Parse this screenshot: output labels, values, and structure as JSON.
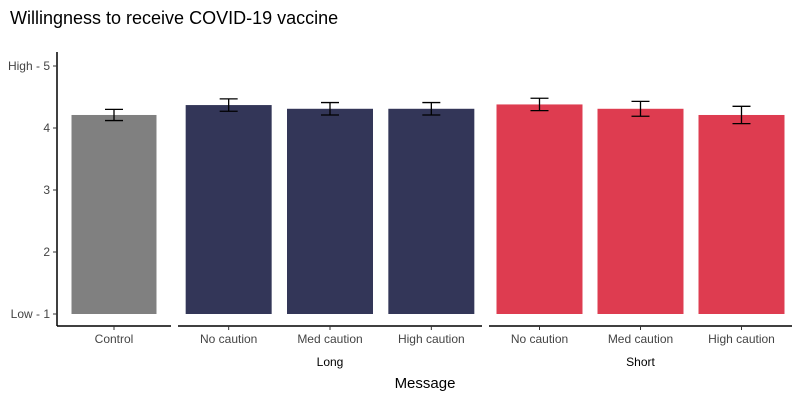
{
  "chart_data": {
    "type": "bar",
    "title": "Willingness to receive COVID-19 vaccine",
    "xlabel": "Message",
    "ylabel": "",
    "ylim": [
      1,
      5
    ],
    "yticks": [
      {
        "value": 5,
        "label": "High - 5"
      },
      {
        "value": 4,
        "label": "4"
      },
      {
        "value": 3,
        "label": "3"
      },
      {
        "value": 2,
        "label": "2"
      },
      {
        "value": 1,
        "label": "Low - 1"
      }
    ],
    "grid": false,
    "groups": [
      {
        "label": "",
        "bars": [
          {
            "category": "Control",
            "value": 4.21,
            "err_low": 4.12,
            "err_high": 4.3,
            "color": "#808080"
          }
        ]
      },
      {
        "label": "Long",
        "bars": [
          {
            "category": "No caution",
            "value": 4.37,
            "err_low": 4.27,
            "err_high": 4.47,
            "color": "#333658"
          },
          {
            "category": "Med caution",
            "value": 4.31,
            "err_low": 4.21,
            "err_high": 4.41,
            "color": "#333658"
          },
          {
            "category": "High caution",
            "value": 4.31,
            "err_low": 4.21,
            "err_high": 4.41,
            "color": "#333658"
          }
        ]
      },
      {
        "label": "Short",
        "bars": [
          {
            "category": "No caution",
            "value": 4.38,
            "err_low": 4.28,
            "err_high": 4.48,
            "color": "#de3c50"
          },
          {
            "category": "Med caution",
            "value": 4.31,
            "err_low": 4.19,
            "err_high": 4.43,
            "color": "#de3c50"
          },
          {
            "category": "High caution",
            "value": 4.21,
            "err_low": 4.07,
            "err_high": 4.35,
            "color": "#de3c50"
          }
        ]
      }
    ]
  }
}
